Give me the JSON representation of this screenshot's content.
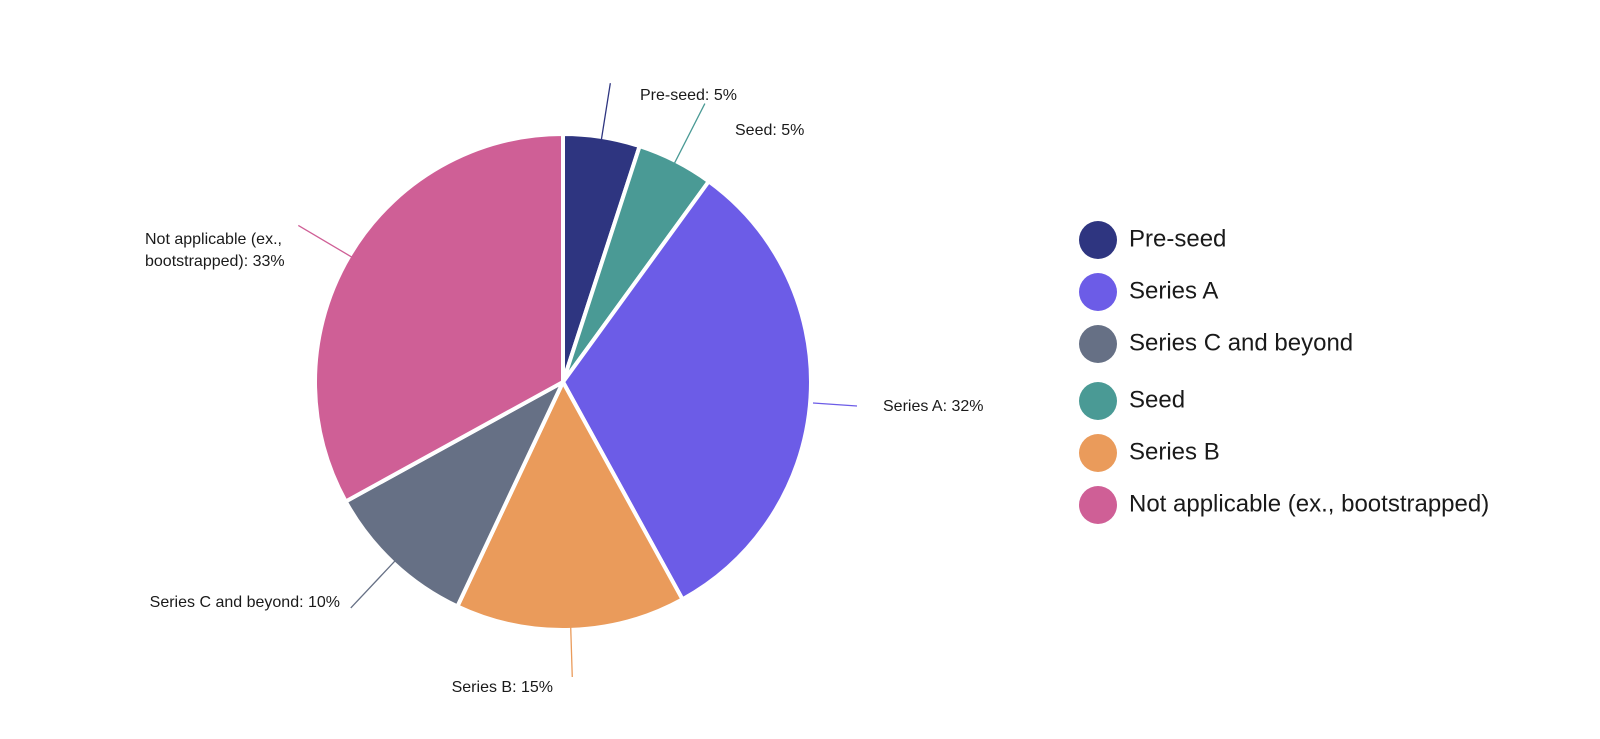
{
  "chart_data": {
    "type": "pie",
    "start_angle_deg": 0,
    "direction": "clockwise",
    "legend_position": "right",
    "slices": [
      {
        "label": "Pre-seed",
        "value": 5,
        "data_label": "Pre-seed: 5%",
        "color": "#2E3580"
      },
      {
        "label": "Seed",
        "value": 5,
        "data_label": "Seed: 5%",
        "color": "#4A9A95"
      },
      {
        "label": "Series A",
        "value": 32,
        "data_label": "Series A: 32%",
        "color": "#6C5CE7"
      },
      {
        "label": "Series B",
        "value": 15,
        "data_label": "Series B: 15%",
        "color": "#EA9B5B"
      },
      {
        "label": "Series C and beyond",
        "value": 10,
        "data_label": "Series C and beyond: 10%",
        "color": "#667085"
      },
      {
        "label": "Not applicable (ex., bootstrapped)",
        "value": 33,
        "data_label_lines": [
          "Not applicable (ex.,",
          "bootstrapped): 33%"
        ],
        "color": "#CF5F96"
      }
    ],
    "legend": [
      {
        "label": "Pre-seed",
        "color": "#2E3580"
      },
      {
        "label": "Series A",
        "color": "#6C5CE7"
      },
      {
        "label": "Series C and beyond",
        "color": "#667085"
      },
      {
        "label": "Seed",
        "color": "#4A9A95"
      },
      {
        "label": "Series B",
        "color": "#EA9B5B"
      },
      {
        "label": "Not applicable (ex., bootstrapped)",
        "color": "#CF5F96"
      }
    ]
  }
}
